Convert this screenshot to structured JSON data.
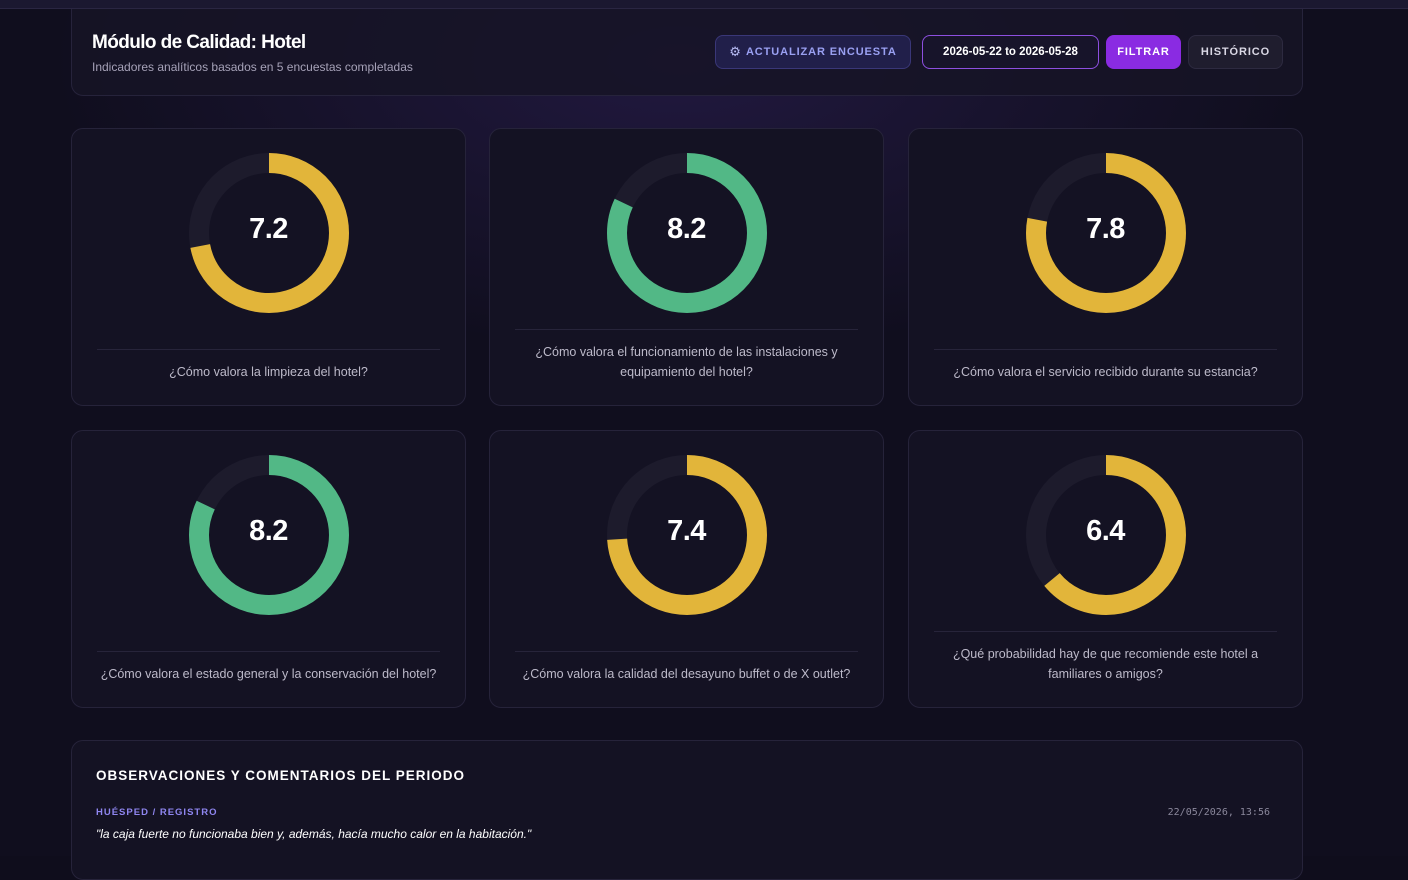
{
  "header": {
    "title": "Módulo de Calidad: Hotel",
    "subtitle": "Indicadores analíticos basados en 5 encuestas completadas",
    "update_icon": "gear-icon",
    "update_label": "ACTUALIZAR ENCUESTA",
    "date_range": "2026-05-22 to 2026-05-28",
    "filter_label": "FILTRAR",
    "history_label": "HISTÓRICO"
  },
  "colors": {
    "good": "#52b886",
    "medium": "#e2b53a",
    "track": "#1d1b2c",
    "accent": "#8a2be2"
  },
  "scale_max": 10,
  "indicators": [
    {
      "score": "7.2",
      "value": 7.2,
      "status": "medium",
      "question": "¿Cómo valora la limpieza del hotel?"
    },
    {
      "score": "8.2",
      "value": 8.2,
      "status": "good",
      "question": "¿Cómo valora el funcionamiento de las instalaciones y equipamiento del hotel?"
    },
    {
      "score": "7.8",
      "value": 7.8,
      "status": "medium",
      "question": "¿Cómo valora el servicio recibido durante su estancia?"
    },
    {
      "score": "8.2",
      "value": 8.2,
      "status": "good",
      "question": "¿Cómo valora el estado general y la conservación del hotel?"
    },
    {
      "score": "7.4",
      "value": 7.4,
      "status": "medium",
      "question": "¿Cómo valora la calidad del desayuno buffet o de X outlet?"
    },
    {
      "score": "6.4",
      "value": 6.4,
      "status": "medium",
      "question": "¿Qué probabilidad hay de que recomiende este hotel a familiares o amigos?"
    }
  ],
  "observations": {
    "title": "OBSERVACIONES Y COMENTARIOS DEL PERIODO",
    "items": [
      {
        "who": "HUÉSPED / REGISTRO",
        "time": "22/05/2026, 13:56",
        "text": "\"la caja fuerte no funcionaba bien y, además, hacía mucho calor en la habitación.\""
      }
    ]
  }
}
